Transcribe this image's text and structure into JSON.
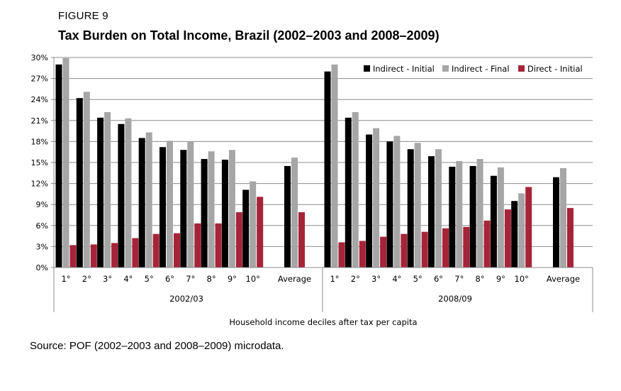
{
  "figure_label": "FIGURE 9",
  "source": "Source: POF (2002–2003 and 2008–2009) microdata.",
  "chart_data": {
    "type": "bar",
    "title": "Tax Burden on Total Income, Brazil (2002–2003 and 2008–2009)",
    "xlabel": "Household income deciles after tax per capita",
    "ylabel": "",
    "ylim": [
      0,
      30
    ],
    "yticks": [
      "0%",
      "3%",
      "6%",
      "9%",
      "12%",
      "15%",
      "18%",
      "21%",
      "24%",
      "27%",
      "30%"
    ],
    "grid": true,
    "legend_position": "top-right",
    "legend": [
      "Indirect - Initial",
      "Indirect - Final",
      "Direct - Initial"
    ],
    "colors": [
      "#000000",
      "#a6a6a6",
      "#a6243a"
    ],
    "groups": [
      {
        "name": "2002/03",
        "categories": [
          "1°",
          "2°",
          "3°",
          "4°",
          "5°",
          "6°",
          "7°",
          "8°",
          "9°",
          "10°",
          "Average"
        ],
        "series": [
          {
            "name": "Indirect - Initial",
            "values": [
              29.0,
              24.2,
              21.4,
              20.5,
              18.5,
              17.2,
              16.8,
              15.5,
              15.4,
              11.1,
              14.5
            ]
          },
          {
            "name": "Indirect - Final",
            "values": [
              29.9,
              25.1,
              22.2,
              21.3,
              19.3,
              18.1,
              18.0,
              16.6,
              16.8,
              12.3,
              15.7
            ]
          },
          {
            "name": "Direct - Initial",
            "values": [
              3.2,
              3.3,
              3.5,
              4.2,
              4.8,
              4.9,
              6.3,
              6.3,
              7.9,
              10.1,
              7.9
            ]
          }
        ]
      },
      {
        "name": "2008/09",
        "categories": [
          "1°",
          "2°",
          "3°",
          "4°",
          "5°",
          "6°",
          "7°",
          "8°",
          "9°",
          "10°",
          "Average"
        ],
        "series": [
          {
            "name": "Indirect - Initial",
            "values": [
              28.0,
              21.4,
              19.0,
              18.0,
              16.9,
              15.9,
              14.4,
              14.5,
              13.1,
              9.5,
              12.9
            ]
          },
          {
            "name": "Indirect - Final",
            "values": [
              29.0,
              22.2,
              19.9,
              18.8,
              17.8,
              16.9,
              15.2,
              15.5,
              14.3,
              10.6,
              14.2
            ]
          },
          {
            "name": "Direct - Initial",
            "values": [
              3.6,
              3.8,
              4.4,
              4.8,
              5.1,
              5.6,
              5.8,
              6.7,
              8.3,
              11.5,
              8.5
            ]
          }
        ]
      }
    ]
  }
}
